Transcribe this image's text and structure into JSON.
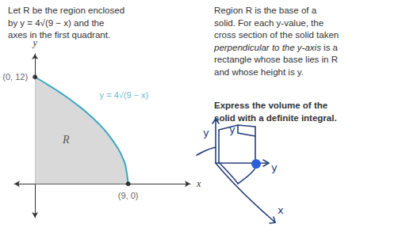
{
  "chart_data": {
    "type": "area",
    "x": [
      0,
      1,
      2,
      3,
      4,
      5,
      6,
      7,
      8,
      8.5,
      8.75,
      9
    ],
    "values": [
      12,
      11.31,
      10.58,
      9.8,
      8.94,
      8,
      6.93,
      5.66,
      4,
      2.83,
      2,
      0
    ],
    "color": "#3aa8c1",
    "xlim": [
      -2,
      15
    ],
    "ylim": [
      -3.8,
      14.6
    ],
    "tick_labels": false,
    "grid": false,
    "xlabel": "x",
    "ylabel": "y",
    "points": [
      {
        "x": 0,
        "y": 12,
        "label": "(0, 12)"
      },
      {
        "x": 9,
        "y": 0,
        "label": "(9, 0)"
      }
    ],
    "annotations": [
      {
        "text": "y = 4√(9 − x)",
        "x": 8.6,
        "y": 10
      },
      {
        "text": "R",
        "x": 3,
        "y": 5
      }
    ]
  },
  "intro": [
    "Let R be the region enclosed",
    "by y = 4√(9 − x) and the",
    "axes in the first quadrant."
  ],
  "description": [
    "Region R is the base of a",
    "solid. For each y-value, the",
    "cross section of the solid taken",
    "perpendicular to the y-axis is a",
    "rectangle whose base lies in R",
    "and whose height is y."
  ],
  "emphasis": "perpendicular to the y-axis",
  "task": [
    "Express the volume of the",
    "solid with a definite integral."
  ],
  "sketch_labels": [
    "y",
    "y",
    "y",
    "x"
  ]
}
